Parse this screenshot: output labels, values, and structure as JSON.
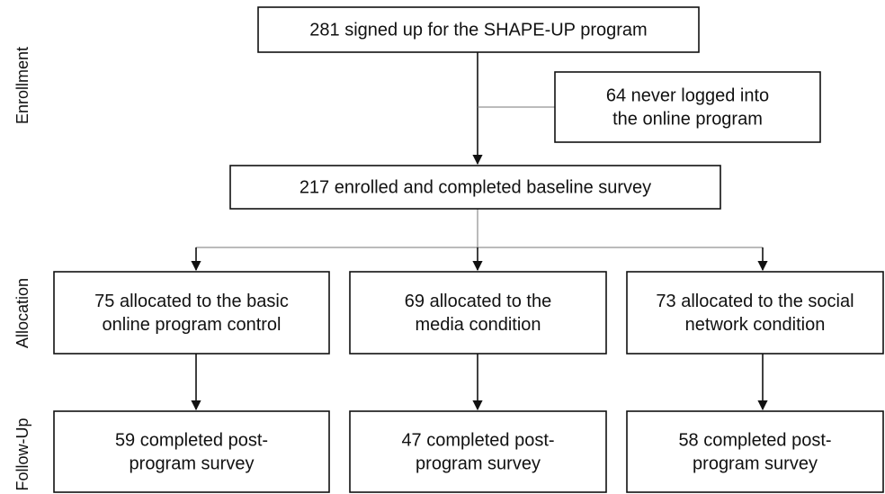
{
  "stages": [
    "Enrollment",
    "Allocation",
    "Follow-Up"
  ],
  "nodes": [
    {
      "lines": [
        "281 signed up for the SHAPE-UP program"
      ]
    },
    {
      "lines": [
        "64 never logged into",
        "the online program"
      ]
    },
    {
      "lines": [
        "217 enrolled and completed baseline survey"
      ]
    },
    {
      "lines": [
        "75 allocated to the basic",
        "online program control"
      ]
    },
    {
      "lines": [
        "69 allocated to the",
        "media condition"
      ]
    },
    {
      "lines": [
        "73 allocated to the social",
        "network condition"
      ]
    },
    {
      "lines": [
        "59 completed post-",
        "program survey"
      ]
    },
    {
      "lines": [
        "47 completed post-",
        "program survey"
      ]
    },
    {
      "lines": [
        "58 completed post-",
        "program survey"
      ]
    }
  ]
}
